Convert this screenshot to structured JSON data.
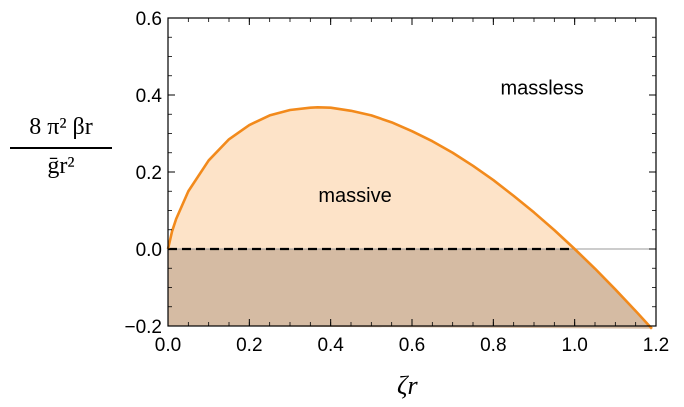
{
  "chart_data": {
    "type": "line",
    "title": "",
    "xlabel": "ζr",
    "ylabel": "8 π² βr / ḡr²",
    "ylabel_parts": {
      "numerator": "8 π² βr",
      "denominator": "ḡr²"
    },
    "xlim": [
      0,
      1.2
    ],
    "ylim": [
      -0.2,
      0.6
    ],
    "x_ticks": [
      "0.0",
      "0.2",
      "0.4",
      "0.6",
      "0.8",
      "1.0",
      "1.2"
    ],
    "y_ticks": [
      "−0.2",
      "0.0",
      "0.2",
      "0.4",
      "0.6"
    ],
    "grid": false,
    "series": [
      {
        "color": "#f28a1c",
        "x": [
          0.0,
          0.01,
          0.02,
          0.05,
          0.1,
          0.15,
          0.2,
          0.25,
          0.3,
          0.35,
          0.368,
          0.4,
          0.45,
          0.5,
          0.55,
          0.6,
          0.65,
          0.7,
          0.75,
          0.8,
          0.85,
          0.9,
          0.95,
          1.0,
          1.05,
          1.1,
          1.15,
          1.19
        ],
        "y": [
          0.0,
          0.046,
          0.078,
          0.15,
          0.23,
          0.285,
          0.322,
          0.347,
          0.361,
          0.367,
          0.368,
          0.367,
          0.359,
          0.347,
          0.329,
          0.306,
          0.28,
          0.25,
          0.216,
          0.179,
          0.138,
          0.095,
          0.049,
          0.0,
          -0.051,
          -0.105,
          -0.161,
          -0.207
        ]
      }
    ],
    "reference_line": {
      "y": 0.0,
      "style": "dashed",
      "x_range": [
        0,
        1.0
      ]
    },
    "regions": [
      {
        "label": "massive",
        "color": "#fde3c8"
      },
      {
        "label": "massless"
      },
      {
        "label": "",
        "color": "#d5bba3"
      }
    ],
    "annotations": [
      {
        "text": "massless",
        "x": 0.92,
        "y": 0.42
      },
      {
        "text": "massive",
        "x": 0.46,
        "y": 0.14
      }
    ]
  }
}
